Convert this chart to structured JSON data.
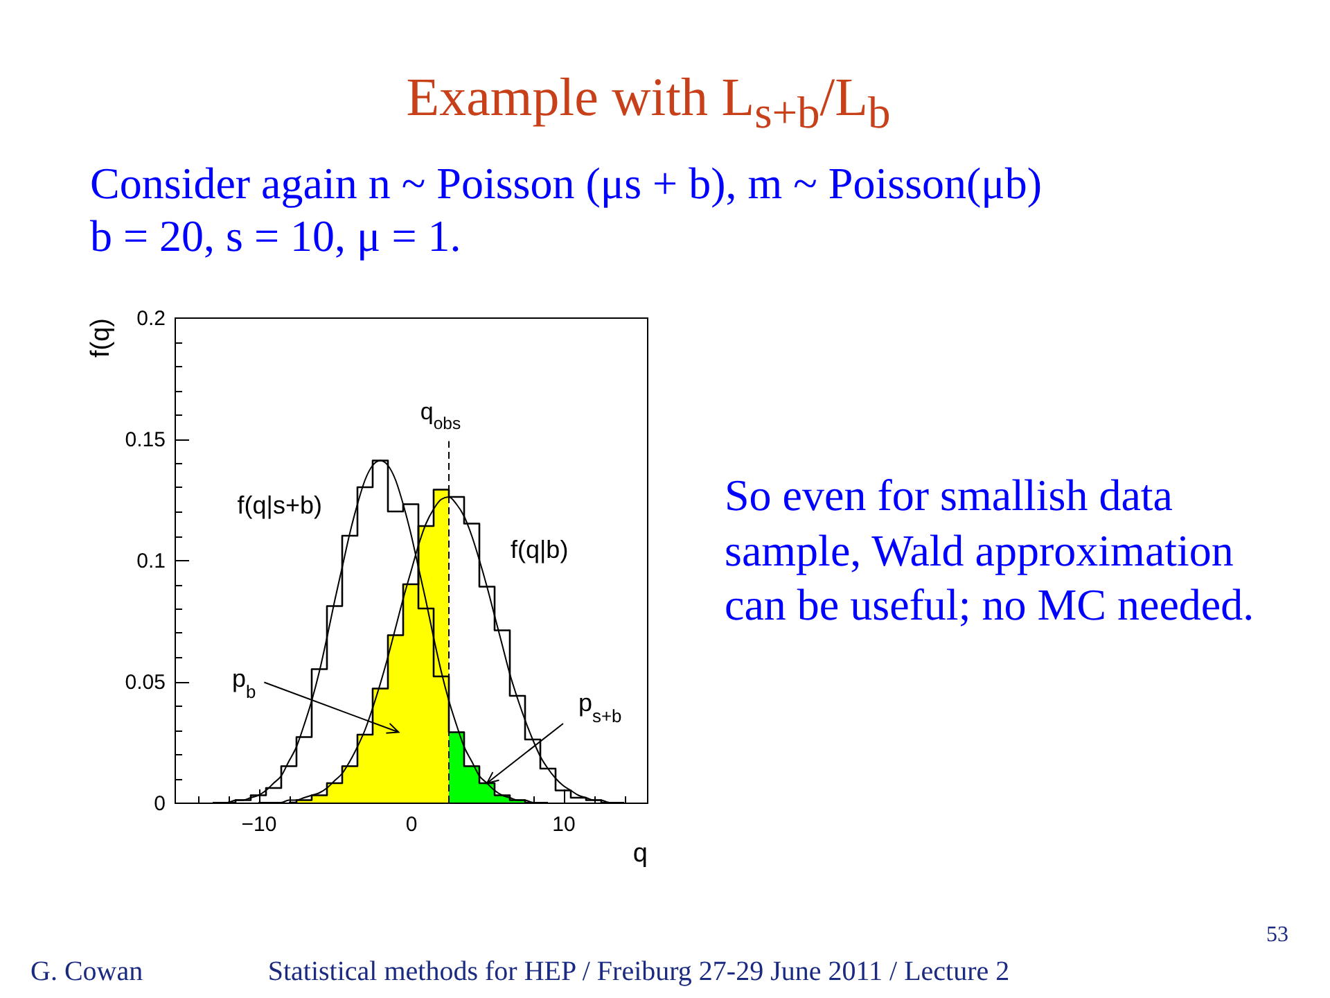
{
  "chart_data": {
    "type": "histogram",
    "title": "Example with L$_{s+b}$/L$_{b}$",
    "subtitle": "Consider again n ~ Poisson (μs + b), m ~ Poisson(μb)\nb = 20, s = 10, μ = 1.",
    "xlabel": "q",
    "ylabel": "f(q)",
    "xlim": [
      -15.5,
      15.5
    ],
    "ylim": [
      0,
      0.2
    ],
    "xticks": [
      {
        "value": -14,
        "label": null
      },
      {
        "value": -12,
        "label": null
      },
      {
        "value": -10,
        "label": "−10"
      },
      {
        "value": -8,
        "label": null
      },
      {
        "value": -6,
        "label": null
      },
      {
        "value": -4,
        "label": null
      },
      {
        "value": -2,
        "label": null
      },
      0,
      {
        "value": 2,
        "label": null
      },
      {
        "value": 4,
        "label": null
      },
      {
        "value": 6,
        "label": null
      },
      {
        "value": 8,
        "label": null
      },
      10,
      {
        "value": 12,
        "label": null
      },
      {
        "value": 14,
        "label": null
      }
    ],
    "yticks": [
      0,
      {
        "value": 0.01,
        "label": null
      },
      {
        "value": 0.02,
        "label": null
      },
      {
        "value": 0.03,
        "label": null
      },
      {
        "value": 0.04,
        "label": null
      },
      0.05,
      {
        "value": 0.06,
        "label": null
      },
      {
        "value": 0.07,
        "label": null
      },
      {
        "value": 0.08,
        "label": null
      },
      {
        "value": 0.09,
        "label": null
      },
      0.1,
      {
        "value": 0.11,
        "label": null
      },
      {
        "value": 0.12,
        "label": null
      },
      {
        "value": 0.13,
        "label": null
      },
      {
        "value": 0.14,
        "label": null
      },
      0.15,
      {
        "value": 0.16,
        "label": null
      },
      {
        "value": 0.17,
        "label": null
      },
      {
        "value": 0.18,
        "label": null
      },
      {
        "value": 0.19,
        "label": null
      },
      0.2
    ],
    "bins": [
      -7.5,
      -6.5,
      -5.5,
      -4.5,
      -3.5,
      -2.5,
      -1.5,
      -0.5,
      0.5,
      1.5,
      2.5,
      3.5,
      4.5,
      5.5,
      6.5,
      7.5
    ],
    "series": [
      {
        "name": "f(q|s+b)",
        "type": "step",
        "color": "#000000",
        "x": [
          -12,
          -11,
          -10,
          -9,
          -8,
          -7,
          -6,
          -5,
          -4,
          -3,
          -2,
          -1,
          0,
          1,
          2,
          3,
          4,
          5,
          6,
          7,
          8
        ],
        "values": [
          0,
          0.001,
          0.003,
          0.006,
          0.015,
          0.027,
          0.055,
          0.081,
          0.11,
          0.13,
          0.141,
          0.12,
          0.123,
          0.08,
          0.052,
          0.029,
          0.015,
          0.008,
          0.003,
          0.001,
          0
        ]
      },
      {
        "name": "f(q|b)",
        "type": "step",
        "color": "#000000",
        "x": [
          -8,
          -7,
          -6,
          -5,
          -4,
          -3,
          -2,
          -1,
          0,
          1,
          2,
          3,
          4,
          5,
          6,
          7,
          8,
          9,
          10,
          11,
          12,
          13
        ],
        "values": [
          0,
          0.001,
          0.003,
          0.008,
          0.015,
          0.028,
          0.047,
          0.069,
          0.09,
          0.114,
          0.129,
          0.126,
          0.115,
          0.089,
          0.071,
          0.044,
          0.026,
          0.014,
          0.005,
          0.002,
          0.001,
          0
        ]
      },
      {
        "type": "line",
        "color": "#000000",
        "x": [
          -13,
          -12.5,
          -12,
          -11.5,
          -11,
          -10.5,
          -10,
          -9.5,
          -9,
          -8.5,
          -8,
          -7.5,
          -7,
          -6.5,
          -6,
          -5.5,
          -5,
          -4.5,
          -4,
          -3.5,
          -3,
          -2.5,
          -2,
          -1.5,
          -1,
          -0.5,
          0,
          0.5,
          1,
          1.5,
          2,
          2.5,
          3,
          3.5,
          4,
          4.5,
          5,
          5.5,
          6,
          6.5,
          7,
          7.5,
          8,
          8.5,
          9
        ],
        "values": [
          0,
          0,
          0,
          0.001,
          0.001,
          0.002,
          0.003,
          0.005,
          0.008,
          0.011,
          0.017,
          0.023,
          0.032,
          0.042,
          0.054,
          0.068,
          0.083,
          0.097,
          0.111,
          0.123,
          0.133,
          0.139,
          0.141,
          0.139,
          0.133,
          0.123,
          0.111,
          0.097,
          0.083,
          0.068,
          0.054,
          0.042,
          0.032,
          0.023,
          0.017,
          0.011,
          0.008,
          0.005,
          0.003,
          0.002,
          0.001,
          0.001,
          0,
          0,
          0
        ]
      },
      {
        "type": "line",
        "color": "#000000",
        "x": [
          -10,
          -9.5,
          -9,
          -8.5,
          -8,
          -7.5,
          -7,
          -6.5,
          -6,
          -5.5,
          -5,
          -4.5,
          -4,
          -3.5,
          -3,
          -2.5,
          -2,
          -1.5,
          -1,
          -0.5,
          0,
          0.5,
          1,
          1.5,
          2,
          2.5,
          3,
          3.5,
          4,
          4.5,
          5,
          5.5,
          6,
          6.5,
          7,
          7.5,
          8,
          8.5,
          9,
          9.5,
          10,
          10.5,
          11,
          11.5,
          12,
          12.5,
          13,
          13.5,
          14
        ],
        "values": [
          0,
          0,
          0,
          0,
          0.001,
          0.001,
          0.002,
          0.003,
          0.004,
          0.006,
          0.009,
          0.012,
          0.017,
          0.023,
          0.03,
          0.039,
          0.049,
          0.06,
          0.072,
          0.084,
          0.095,
          0.106,
          0.115,
          0.121,
          0.125,
          0.126,
          0.123,
          0.118,
          0.11,
          0.1,
          0.089,
          0.077,
          0.065,
          0.053,
          0.043,
          0.034,
          0.026,
          0.019,
          0.014,
          0.01,
          0.007,
          0.005,
          0.003,
          0.002,
          0.001,
          0.001,
          0,
          0,
          0
        ]
      },
      {
        "color": "#ffff00",
        "values": [
          0.001,
          0.003,
          0.008,
          0.015,
          0.028,
          0.047,
          0.069,
          0.09,
          0.114,
          0.129,
          null,
          null,
          null,
          null,
          null
        ]
      },
      {
        "color": "#00ff00",
        "values": [
          null,
          null,
          null,
          null,
          null,
          null,
          null,
          null,
          null,
          null,
          0.029,
          0.015,
          0.008,
          0.003,
          0.001
        ]
      }
    ],
    "ref_lines": [
      {
        "axis": "x",
        "value": 2.5,
        "label": "q$_{obs}$",
        "line_style": "dashed"
      }
    ],
    "annotations": [
      "So even for smallish data sample, Wald approximation can be useful; no MC needed.",
      "G. Cowan",
      "Statistical methods for HEP / Freiburg 27-29 June 2011 / Lecture 2",
      "53",
      {
        "text": "p$_{b}$",
        "x": -0.8,
        "y": 0.029
      },
      {
        "text": "p$_{s+b}$",
        "x": 5,
        "y": 0.008
      }
    ]
  }
}
